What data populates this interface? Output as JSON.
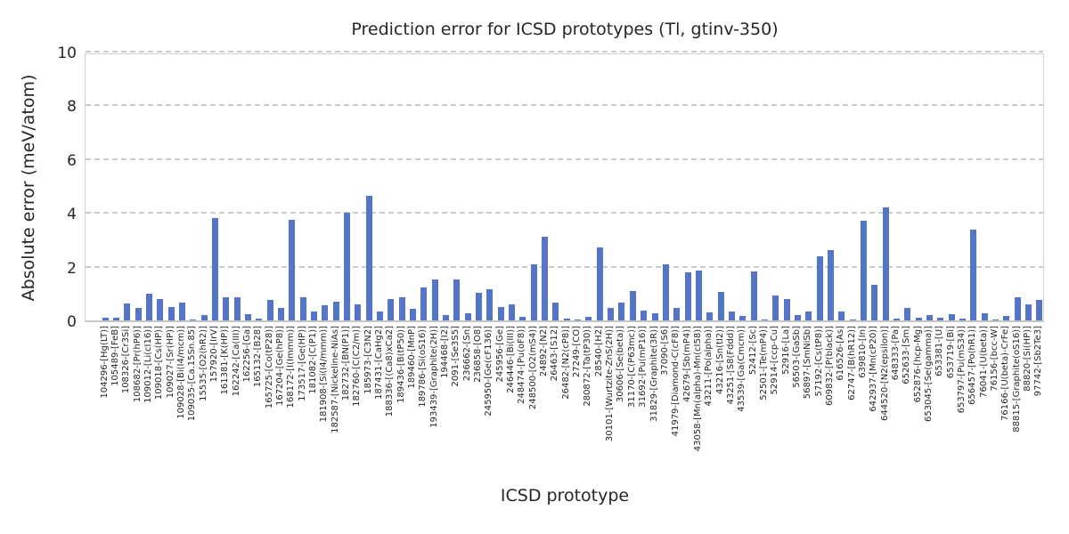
{
  "title": "Prediction error for ICSD prototypes (Tl, gtinv-350)",
  "chart_data": {
    "type": "bar",
    "title": "Prediction error for ICSD prototypes (Tl, gtinv-350)",
    "xlabel": "ICSD prototype",
    "ylabel": "Absolute error (meV/atom)",
    "ylim": [
      0,
      10
    ],
    "yticks": [
      0,
      2,
      4,
      6,
      8,
      10
    ],
    "grid": true,
    "grid_style": "dashed",
    "grid_color": "#cccccc",
    "bar_color": "#5474c8",
    "text_color": "#262626",
    "legend": "none",
    "categories": [
      "104296-[Hg(LT)]",
      "105489-[FeB]",
      "108326-[Cr3Si]",
      "108682-[Pr(hP6)]",
      "109012-[Li(cI16)]",
      "109018-[Cs(HP)]",
      "109027-[Sr(HP)]",
      "109028-[Bi(I4/mcm)]",
      "109035-[Ca.15Sn.85]",
      "15535-[O2(hR2)]",
      "157920-[IrV]",
      "161381-[K(HP)]",
      "162242-[Ca(III)]",
      "162256-[Ga]",
      "165132-[B28]",
      "165725-[Co(tP28)]",
      "167204-[Ge(hP8)]",
      "168172-[I(Immm)]",
      "173517-[Ge(HP)]",
      "181082-[C(P1)]",
      "181908-[Si(I4/mmm)]",
      "182587-[Nickeline-NiAs]",
      "182732-[BN(P1)]",
      "182760-[C(C2/m)]",
      "185973-[C3N2]",
      "187431-[CaHg2]",
      "188336-[(Ca8)xCa2]",
      "189436-[B(tP50)]",
      "189460-[MnP]",
      "189786-[Si(oS16)]",
      "193439-[Graphite(2H)]",
      "194468-[I2]",
      "2091-[Se3S5]",
      "236662-[Sn]",
      "236858-[O8]",
      "245950-[Ge(cF136)]",
      "245956-[Ge]",
      "246446-[Bi(III)]",
      "248474-[Pu(oF8)]",
      "248500-[O2(mS4)]",
      "24892-[N2]",
      "26463-[S12]",
      "26482-[N2(cP8)]",
      "27249-[CO]",
      "280872-[Ta(tP30)]",
      "28540-[H2]",
      "30101-[Wurtzite-ZnS(2H)]",
      "30606-[Se(beta)]",
      "31170-[C(P63mc)]",
      "31692-[Pu(mP16)]",
      "31829-[Graphite(3R)]",
      "37090-[S6]",
      "41979-[Diamond-C(cF8)]",
      "42679-[Sb(mP4)]",
      "43058-[Mn(alpha)-Mn(cI58)]",
      "43211-[Po(alpha)]",
      "43216-[Sn(tI2)]",
      "43251-[S8(Fddd)]",
      "43539-[Ga(Cmcm)]",
      "52412-[Sc]",
      "52501-[Te(mP4)]",
      "52914-[ccp-Cu]",
      "52916-[La]",
      "56503-[GaSb]",
      "56897-[SmNiSb]",
      "57192-[Cs(tP8)]",
      "609832-[P(black)]",
      "616526-[As]",
      "62747-[B(hR12)]",
      "639810-[In]",
      "642937-[Mn(cP20)]",
      "644520-[N2(epsilon)]",
      "648333-[Pa]",
      "652633-[Sm]",
      "652876-[hcp-Mg]",
      "653045-[Se(gamma)]",
      "653381-[U]",
      "653719-[Bi]",
      "653797-[Pu(mS34)]",
      "656457-[Po(hR1)]",
      "76041-[U(beta)]",
      "76156-[bcc-W]",
      "76166-[U(beta)-CrFe]",
      "88815-[Graphite(oS16)]",
      "88820-[Si(HP)]",
      "97742-[Sb2Te3]"
    ],
    "values": [
      0.09,
      0.09,
      0.62,
      0.48,
      1.0,
      0.78,
      0.5,
      0.65,
      0.05,
      0.2,
      3.8,
      0.87,
      0.86,
      0.22,
      0.06,
      0.76,
      0.47,
      3.74,
      0.87,
      0.33,
      0.56,
      0.7,
      4.0,
      0.58,
      4.65,
      0.32,
      0.78,
      0.85,
      0.42,
      1.22,
      1.52,
      0.2,
      1.52,
      0.25,
      1.02,
      1.15,
      0.5,
      0.58,
      0.14,
      2.1,
      3.1,
      0.65,
      0.07,
      0.02,
      0.13,
      2.72,
      0.48,
      0.65,
      1.1,
      0.36,
      0.25,
      2.08,
      0.48,
      1.78,
      1.85,
      0.3,
      1.05,
      0.32,
      0.15,
      1.82,
      0.02,
      0.93,
      0.78,
      0.2,
      0.33,
      2.38,
      2.6,
      0.33,
      0.03,
      3.72,
      1.32,
      4.2,
      0.06,
      0.46,
      0.09,
      0.2,
      0.09,
      0.23,
      0.07,
      3.38,
      0.28,
      0.02,
      0.18,
      0.87,
      0.6,
      0.76
    ]
  }
}
